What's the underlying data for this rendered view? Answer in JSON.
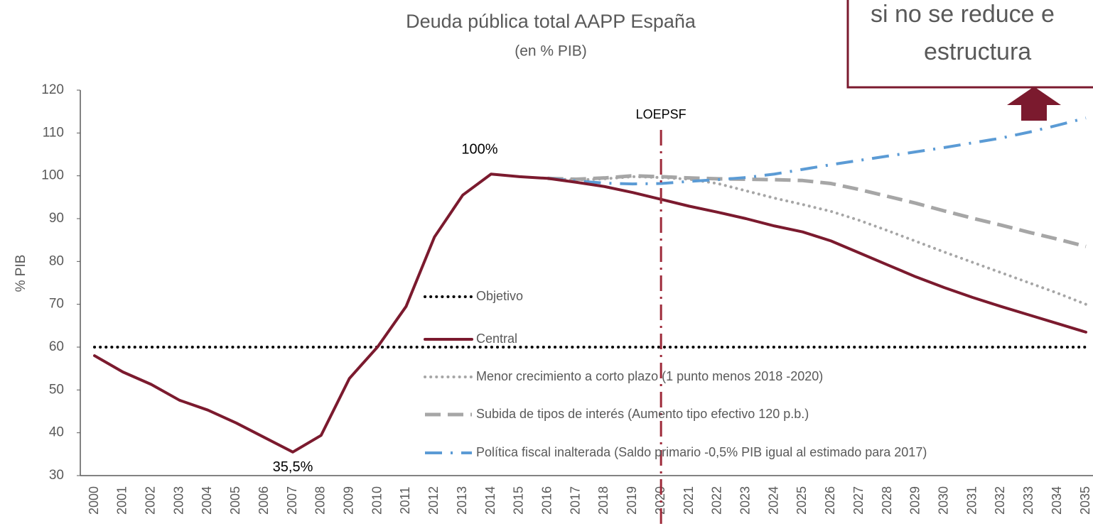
{
  "chart_data": {
    "type": "line",
    "title": "Deuda pública total AAPP España",
    "subtitle": "(en % PIB)",
    "y_label": "% PIB",
    "x": [
      2000,
      2001,
      2002,
      2003,
      2004,
      2005,
      2006,
      2007,
      2008,
      2009,
      2010,
      2011,
      2012,
      2013,
      2014,
      2015,
      2016,
      2017,
      2018,
      2019,
      2020,
      2021,
      2022,
      2023,
      2024,
      2025,
      2026,
      2027,
      2028,
      2029,
      2030,
      2031,
      2032,
      2033,
      2034,
      2035
    ],
    "xlim": [
      2000,
      2035
    ],
    "ylim": [
      30,
      120
    ],
    "yticks": [
      30,
      40,
      50,
      60,
      70,
      80,
      90,
      100,
      110,
      120
    ],
    "grid": false,
    "series": [
      {
        "name": "Objetivo",
        "color": "#000000",
        "style": "dotted",
        "values": [
          60,
          60,
          60,
          60,
          60,
          60,
          60,
          60,
          60,
          60,
          60,
          60,
          60,
          60,
          60,
          60,
          60,
          60,
          60,
          60,
          60,
          60,
          60,
          60,
          60,
          60,
          60,
          60,
          60,
          60,
          60,
          60,
          60,
          60,
          60,
          60
        ]
      },
      {
        "name": "Central",
        "color": "#7b1a2e",
        "style": "solid",
        "values": [
          58,
          54.2,
          51.3,
          47.6,
          45.3,
          42.3,
          38.9,
          35.5,
          39.4,
          52.7,
          60.1,
          69.5,
          85.7,
          95.5,
          100.4,
          99.8,
          99.4,
          98.5,
          97.5,
          96.1,
          94.5,
          92.9,
          91.5,
          90,
          88.3,
          86.9,
          84.8,
          82,
          79.2,
          76.4,
          73.9,
          71.6,
          69.5,
          67.5,
          65.5,
          63.5
        ]
      },
      {
        "name": "Menor crecimiento a corto plazo (1 punto menos 2018 -2020)",
        "color": "#a6a6a6",
        "style": "dotted",
        "values": [
          null,
          null,
          null,
          null,
          null,
          null,
          null,
          null,
          null,
          null,
          null,
          null,
          null,
          null,
          null,
          null,
          99.4,
          99,
          99.3,
          99.8,
          99.6,
          99.2,
          98.2,
          96.5,
          94.8,
          93.3,
          91.7,
          89.6,
          87.2,
          84.7,
          82.2,
          79.8,
          77.4,
          75,
          72.6,
          70
        ]
      },
      {
        "name": "Subida de tipos de interés (Aumento tipo efectivo 120 p.b.)",
        "color": "#a6a6a6",
        "style": "dashed",
        "values": [
          null,
          null,
          null,
          null,
          null,
          null,
          null,
          null,
          null,
          null,
          null,
          null,
          null,
          null,
          null,
          null,
          99.4,
          99.2,
          99.5,
          100,
          99.8,
          99.5,
          99.3,
          99.2,
          99.1,
          98.9,
          98.2,
          96.8,
          95.2,
          93.6,
          91.8,
          90.1,
          88.5,
          86.8,
          85.2,
          83.5
        ]
      },
      {
        "name": "Política fiscal inalterada (Saldo primario -0,5% PIB igual al estimado para 2017)",
        "color": "#5b9bd5",
        "style": "dashdot",
        "values": [
          null,
          null,
          null,
          null,
          null,
          null,
          null,
          null,
          null,
          null,
          null,
          null,
          null,
          null,
          null,
          null,
          99.4,
          98.8,
          98.3,
          98.1,
          98.2,
          98.7,
          99.1,
          99.6,
          100.4,
          101.5,
          102.6,
          103.6,
          104.6,
          105.6,
          106.6,
          107.7,
          108.8,
          110.2,
          111.8,
          113.5
        ]
      }
    ],
    "annotations": [
      {
        "text": "100%",
        "x": 2014,
        "y": 100.4
      },
      {
        "text": "35,5%",
        "x": 2007,
        "y": 35.5
      }
    ],
    "vline": {
      "x": 2020,
      "label": "LOEPSF",
      "color": "#9e2a3a"
    },
    "callout": {
      "lines": [
        "si no se reduce e",
        "estructura"
      ]
    }
  }
}
